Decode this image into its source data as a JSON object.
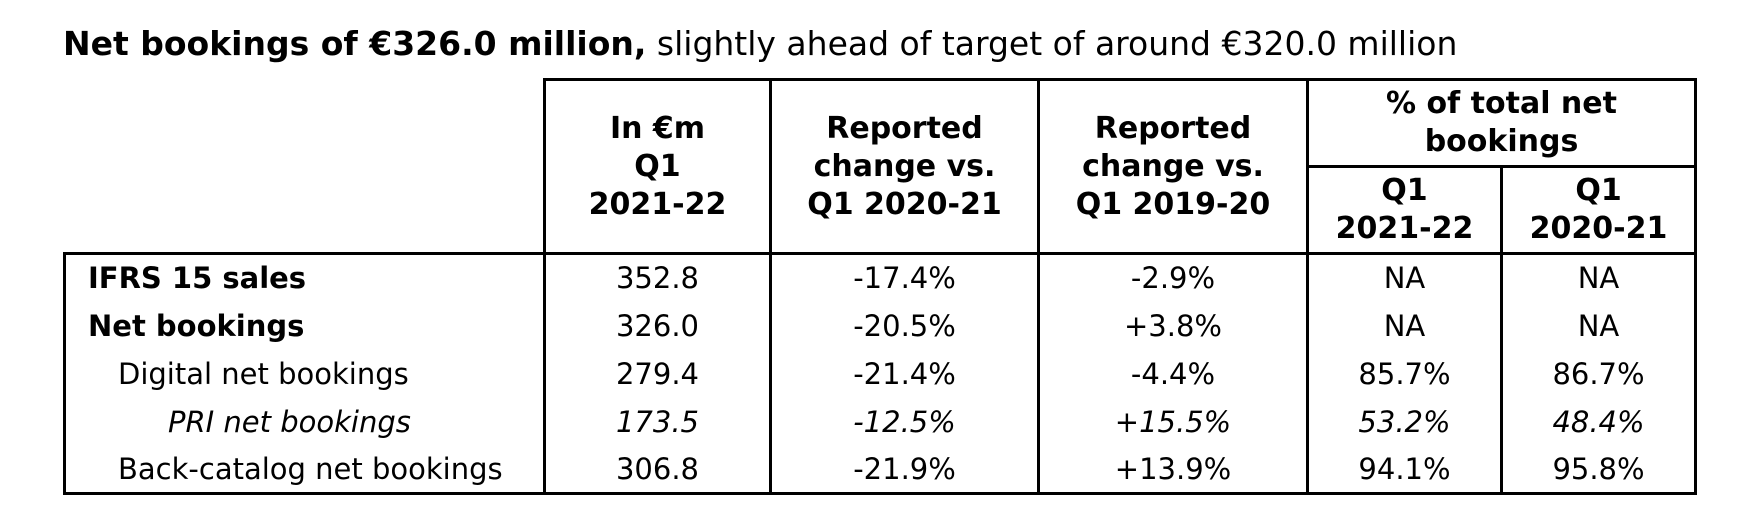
{
  "title": {
    "bold": "Net bookings of €326.0 million,",
    "regular": " slightly ahead of target of around €320.0 million"
  },
  "table": {
    "col_headers": {
      "in_eur_m": "In €m\nQ1\n2021-22",
      "change_vs_q1_2020_21": "Reported\nchange vs.\nQ1 2020-21",
      "change_vs_q1_2019_20": "Reported\nchange vs.\nQ1 2019-20",
      "pct_total_group": "% of total net\nbookings",
      "pct_sub_q1_2021_22": "Q1\n2021-22",
      "pct_sub_q1_2020_21": "Q1\n2020-21"
    },
    "rows": [
      {
        "label": "IFRS 15 sales",
        "values": [
          "352.8",
          "-17.4%",
          "-2.9%",
          "NA",
          "NA"
        ]
      },
      {
        "label": "Net bookings",
        "values": [
          "326.0",
          "-20.5%",
          "+3.8%",
          "NA",
          "NA"
        ]
      },
      {
        "label": "Digital net bookings",
        "values": [
          "279.4",
          "-21.4%",
          "-4.4%",
          "85.7%",
          "86.7%"
        ]
      },
      {
        "label": "PRI net bookings",
        "values": [
          "173.5",
          "-12.5%",
          "+15.5%",
          "53.2%",
          "48.4%"
        ]
      },
      {
        "label": "Back-catalog net bookings",
        "values": [
          "306.8",
          "-21.9%",
          "+13.9%",
          "94.1%",
          "95.8%"
        ]
      }
    ]
  }
}
